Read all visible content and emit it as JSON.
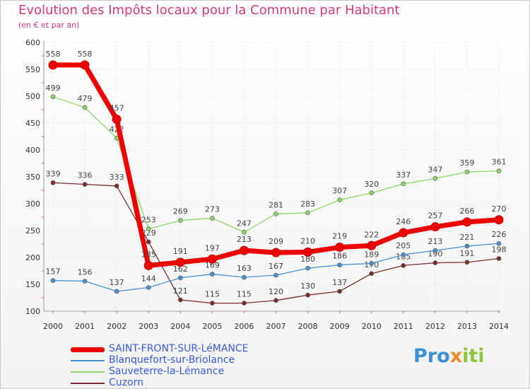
{
  "title": "Evolution des Impôts locaux pour la Commune par Habitant",
  "subtitle": "(en € et par an)",
  "logo": {
    "letters": [
      "P",
      "r",
      "o",
      "x",
      "i",
      "t",
      "i"
    ],
    "colors": [
      "#3a8fd8",
      "#3a8fd8",
      "#3a8fd8",
      "#f08a24",
      "#8cc63f",
      "#8cc63f",
      "#8cc63f"
    ]
  },
  "chart_data": {
    "type": "line",
    "x": [
      "2000",
      "2001",
      "2002",
      "2003",
      "2004",
      "2005",
      "2006",
      "2007",
      "2008",
      "2009",
      "2010",
      "2011",
      "2012",
      "2013",
      "2014"
    ],
    "ylim": [
      100,
      600
    ],
    "yticks": [
      "100",
      "150",
      "200",
      "250",
      "300",
      "350",
      "400",
      "450",
      "500",
      "550",
      "600"
    ],
    "grid": true,
    "legend_position": "bottom-left",
    "series": [
      {
        "name": "Cuzorn",
        "color": "#7b2b2b",
        "width": 1.3,
        "values": [
          339,
          336,
          333,
          229,
          121,
          115,
          115,
          120,
          130,
          137,
          170,
          185,
          190,
          191,
          198
        ],
        "labels": [
          "339",
          "336",
          "333",
          "229",
          "121",
          "115",
          "115",
          "120",
          "130",
          "137",
          "170",
          "185",
          "190",
          "191",
          "198"
        ]
      },
      {
        "name": "Blanquefort-sur-Briolance",
        "color": "#4a90d0",
        "width": 1.3,
        "values": [
          157,
          156,
          137,
          144,
          162,
          169,
          163,
          167,
          180,
          186,
          189,
          205,
          213,
          221,
          226
        ],
        "labels": [
          "157",
          "156",
          "137",
          "144",
          "162",
          "169",
          "163",
          "167",
          "180",
          "186",
          "189",
          "205",
          "213",
          "221",
          "226"
        ]
      },
      {
        "name": "Sauveterre-la-Lémance",
        "color": "#8fd46a",
        "width": 1.3,
        "values": [
          499,
          479,
          422,
          253,
          269,
          273,
          247,
          281,
          283,
          307,
          320,
          337,
          347,
          359,
          361
        ],
        "labels": [
          "499",
          "479",
          "422",
          "253",
          "269",
          "273",
          "247",
          "281",
          "283",
          "307",
          "320",
          "337",
          "347",
          "359",
          "361"
        ]
      },
      {
        "name": "SAINT-FRONT-SUR-LéMANCE",
        "color": "#ee0000",
        "width": 7,
        "values": [
          558,
          558,
          457,
          185,
          191,
          197,
          213,
          209,
          210,
          219,
          222,
          246,
          257,
          266,
          270
        ],
        "labels": [
          "558",
          "558",
          "457",
          "185",
          "191",
          "197",
          "213",
          "209",
          "210",
          "219",
          "222",
          "246",
          "257",
          "266",
          "270"
        ]
      }
    ]
  },
  "legend": [
    {
      "label": "SAINT-FRONT-SUR-LéMANCE",
      "color": "#ee0000",
      "thickness": 7
    },
    {
      "label": "Blanquefort-sur-Briolance",
      "color": "#4a90d0",
      "thickness": 2
    },
    {
      "label": "Sauveterre-la-Lémance",
      "color": "#8fd46a",
      "thickness": 2
    },
    {
      "label": "Cuzorn",
      "color": "#7b2b2b",
      "thickness": 2
    }
  ]
}
